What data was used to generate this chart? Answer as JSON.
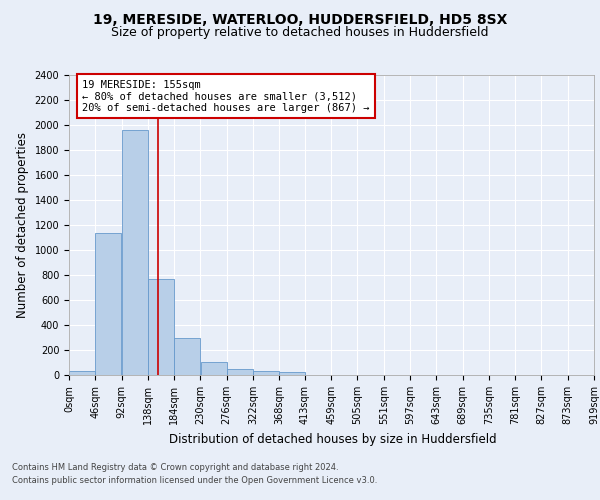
{
  "title1": "19, MERESIDE, WATERLOO, HUDDERSFIELD, HD5 8SX",
  "title2": "Size of property relative to detached houses in Huddersfield",
  "xlabel": "Distribution of detached houses by size in Huddersfield",
  "ylabel": "Number of detached properties",
  "bin_edges": [
    0,
    46,
    92,
    138,
    184,
    230,
    276,
    322,
    368,
    413,
    459,
    505,
    551,
    597,
    643,
    689,
    735,
    781,
    827,
    873,
    919
  ],
  "bin_labels": [
    "0sqm",
    "46sqm",
    "92sqm",
    "138sqm",
    "184sqm",
    "230sqm",
    "276sqm",
    "322sqm",
    "368sqm",
    "413sqm",
    "459sqm",
    "505sqm",
    "551sqm",
    "597sqm",
    "643sqm",
    "689sqm",
    "735sqm",
    "781sqm",
    "827sqm",
    "873sqm",
    "919sqm"
  ],
  "bar_heights": [
    35,
    1140,
    1960,
    770,
    300,
    105,
    45,
    35,
    25,
    0,
    0,
    0,
    0,
    0,
    0,
    0,
    0,
    0,
    0,
    0
  ],
  "bar_color": "#b8cfe8",
  "bar_edge_color": "#6699cc",
  "vline_x": 155,
  "vline_color": "#cc0000",
  "annotation_text": "19 MERESIDE: 155sqm\n← 80% of detached houses are smaller (3,512)\n20% of semi-detached houses are larger (867) →",
  "annotation_box_color": "white",
  "annotation_box_edge": "#cc0000",
  "ylim": [
    0,
    2400
  ],
  "yticks": [
    0,
    200,
    400,
    600,
    800,
    1000,
    1200,
    1400,
    1600,
    1800,
    2000,
    2200,
    2400
  ],
  "footnote1": "Contains HM Land Registry data © Crown copyright and database right 2024.",
  "footnote2": "Contains public sector information licensed under the Open Government Licence v3.0.",
  "bg_color": "#e8eef8",
  "plot_bg_color": "#e8eef8",
  "grid_color": "white",
  "title_fontsize": 10,
  "subtitle_fontsize": 9,
  "axis_label_fontsize": 8.5,
  "tick_fontsize": 7,
  "annotation_fontsize": 7.5,
  "footnote_fontsize": 6
}
